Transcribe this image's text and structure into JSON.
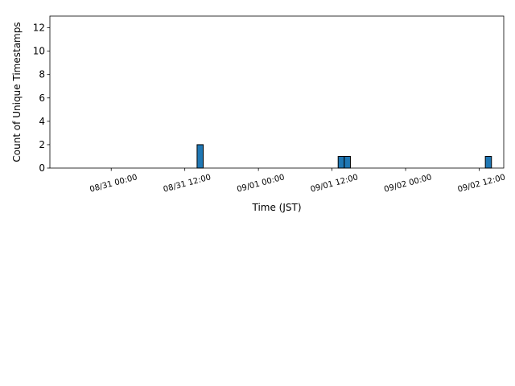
{
  "chart_data": {
    "type": "histogram",
    "xlabel": "Time (JST)",
    "ylabel": "Count of Unique Timestamps",
    "color": "#1f77b4",
    "edgecolor": "#000000",
    "bins": [
      -7,
      -6,
      -5,
      -4,
      -3,
      -2,
      -1,
      0,
      1,
      2,
      3,
      4,
      5,
      6,
      7,
      8,
      9,
      10,
      11,
      12,
      13,
      14,
      15,
      16,
      17,
      18,
      19,
      20,
      21,
      22,
      23,
      24,
      25,
      26,
      27,
      28,
      29,
      30,
      31,
      32,
      33,
      34,
      35,
      36,
      37,
      38,
      39,
      40,
      41,
      42,
      43,
      44,
      45,
      46,
      47,
      48,
      49,
      50,
      51,
      52,
      53,
      54,
      55,
      56,
      57,
      58,
      59,
      60,
      61,
      62
    ],
    "counts": [
      0,
      0,
      0,
      0,
      0,
      0,
      0,
      0,
      0,
      0,
      0,
      0,
      0,
      0,
      0,
      0,
      0,
      0,
      0,
      0,
      0,
      2,
      0,
      0,
      0,
      0,
      0,
      0,
      0,
      0,
      0,
      0,
      0,
      0,
      0,
      0,
      0,
      0,
      0,
      0,
      0,
      0,
      0,
      0,
      1,
      1,
      0,
      0,
      0,
      0,
      0,
      0,
      0,
      0,
      0,
      0,
      0,
      0,
      0,
      0,
      0,
      0,
      0,
      0,
      0,
      0,
      0,
      0,
      1
    ],
    "xlim": [
      -10,
      64
    ],
    "xticks": [
      {
        "value": 0,
        "label": "08/31 00:00"
      },
      {
        "value": 12,
        "label": "08/31 12:00"
      },
      {
        "value": 24,
        "label": "09/01 00:00"
      },
      {
        "value": 36,
        "label": "09/01 12:00"
      },
      {
        "value": 48,
        "label": "09/02 00:00"
      },
      {
        "value": 60,
        "label": "09/02 12:00"
      }
    ],
    "ylim": [
      0,
      13
    ],
    "yticks": [
      0,
      2,
      4,
      6,
      8,
      10,
      12
    ],
    "grid": false
  }
}
